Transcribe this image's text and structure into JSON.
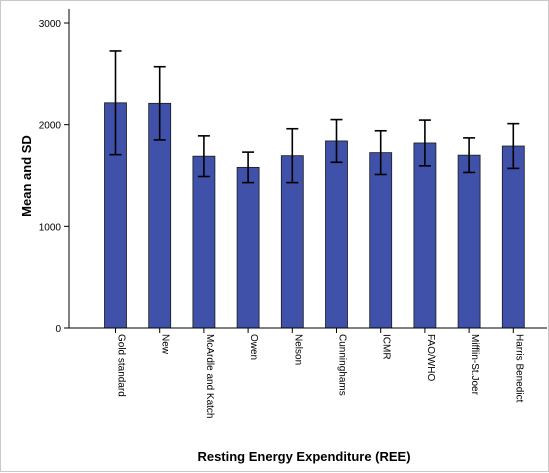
{
  "chart_data": {
    "type": "bar",
    "title": "",
    "xlabel": "Resting Energy Expenditure (REE)",
    "ylabel": "Mean and SD",
    "ylim": [
      0,
      3000
    ],
    "yticks": [
      "0",
      "1000",
      "2000",
      "3000"
    ],
    "grid": false,
    "legend": "none",
    "bar_color": "#3f51a8",
    "categories": [
      "Gold standard",
      "New",
      "McArdle and Katch",
      "Owen",
      "Nelson",
      "Cunninghams",
      "ICMR",
      "FAO/WHO",
      "Mifflin-St.Joer",
      "Harris Benedict"
    ],
    "series": [
      {
        "values": [
          2215,
          2210,
          1690,
          1580,
          1695,
          1840,
          1725,
          1820,
          1700,
          1790
        ],
        "sd": [
          510,
          360,
          200,
          150,
          265,
          210,
          215,
          225,
          170,
          220
        ]
      }
    ]
  }
}
